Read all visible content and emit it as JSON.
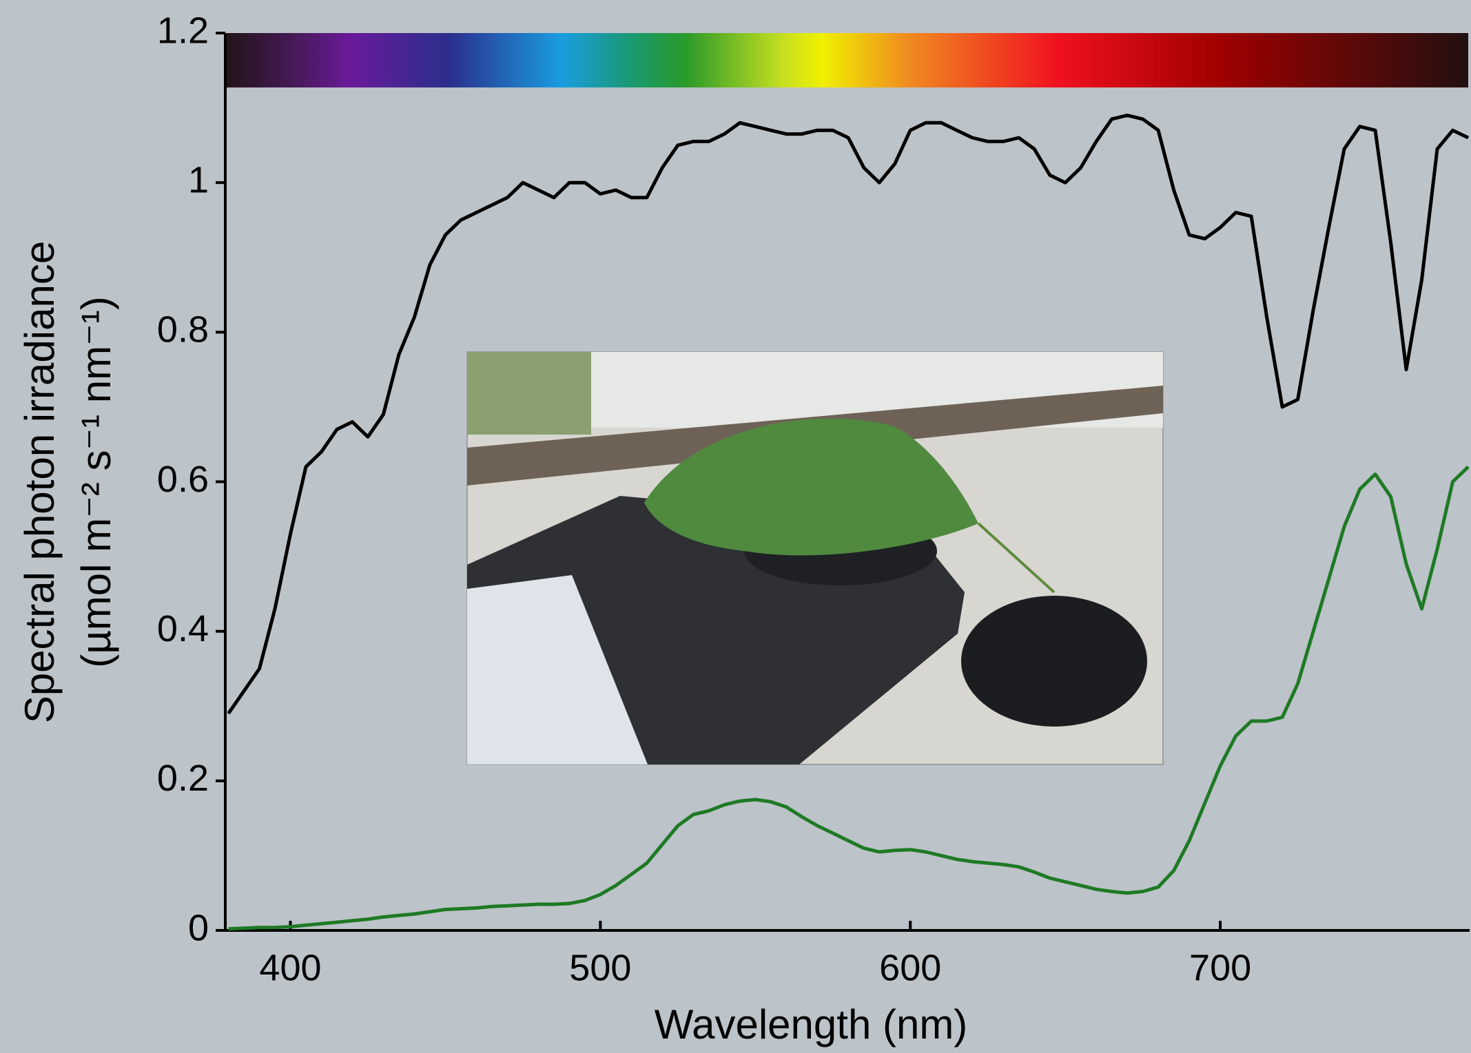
{
  "chart_data": {
    "type": "line",
    "x_label": "Wavelength (nm)",
    "y_label": [
      "Spectral photon irradiance",
      "(µmol m⁻² s⁻¹ nm⁻¹)"
    ],
    "x": [
      380,
      385,
      390,
      395,
      400,
      405,
      410,
      415,
      420,
      425,
      430,
      435,
      440,
      445,
      450,
      455,
      460,
      465,
      470,
      475,
      480,
      485,
      490,
      495,
      500,
      505,
      510,
      515,
      520,
      525,
      530,
      535,
      540,
      545,
      550,
      555,
      560,
      565,
      570,
      575,
      580,
      585,
      590,
      595,
      600,
      605,
      610,
      615,
      620,
      625,
      630,
      635,
      640,
      645,
      650,
      655,
      660,
      665,
      670,
      675,
      680,
      685,
      690,
      695,
      700,
      705,
      710,
      715,
      720,
      725,
      730,
      735,
      740,
      745,
      750,
      755,
      760,
      765,
      770,
      775,
      780
    ],
    "series": [
      {
        "color": "#000000",
        "values": [
          0.29,
          0.32,
          0.35,
          0.43,
          0.53,
          0.62,
          0.64,
          0.67,
          0.68,
          0.66,
          0.69,
          0.77,
          0.82,
          0.89,
          0.93,
          0.95,
          0.96,
          0.97,
          0.98,
          1.0,
          0.99,
          0.98,
          1.0,
          1.0,
          0.985,
          0.99,
          0.98,
          0.98,
          1.02,
          1.05,
          1.055,
          1.055,
          1.065,
          1.08,
          1.075,
          1.07,
          1.065,
          1.065,
          1.07,
          1.07,
          1.06,
          1.02,
          1.0,
          1.025,
          1.07,
          1.08,
          1.08,
          1.07,
          1.06,
          1.055,
          1.055,
          1.06,
          1.045,
          1.01,
          1.0,
          1.02,
          1.055,
          1.085,
          1.09,
          1.085,
          1.07,
          0.99,
          0.93,
          0.925,
          0.94,
          0.96,
          0.955,
          0.82,
          0.7,
          0.71,
          0.83,
          0.94,
          1.045,
          1.075,
          1.07,
          0.92,
          0.75,
          0.87,
          1.045,
          1.07,
          1.06
        ]
      },
      {
        "color": "#1e7a24",
        "values": [
          0.002,
          0.003,
          0.004,
          0.004,
          0.005,
          0.007,
          0.009,
          0.011,
          0.013,
          0.015,
          0.018,
          0.02,
          0.022,
          0.025,
          0.028,
          0.029,
          0.03,
          0.032,
          0.033,
          0.034,
          0.035,
          0.035,
          0.036,
          0.04,
          0.048,
          0.06,
          0.075,
          0.09,
          0.115,
          0.14,
          0.155,
          0.16,
          0.168,
          0.173,
          0.175,
          0.172,
          0.165,
          0.152,
          0.14,
          0.13,
          0.12,
          0.11,
          0.105,
          0.107,
          0.108,
          0.105,
          0.1,
          0.095,
          0.092,
          0.09,
          0.088,
          0.085,
          0.078,
          0.07,
          0.065,
          0.06,
          0.055,
          0.052,
          0.05,
          0.052,
          0.058,
          0.08,
          0.12,
          0.17,
          0.22,
          0.26,
          0.28,
          0.28,
          0.285,
          0.33,
          0.4,
          0.47,
          0.54,
          0.59,
          0.61,
          0.58,
          0.49,
          0.43,
          0.51,
          0.6,
          0.62
        ]
      }
    ],
    "xlim": [
      379,
      780
    ],
    "ylim": [
      0,
      1.2
    ],
    "xticks": [
      400,
      500,
      600,
      700
    ],
    "yticks": [
      0,
      0.2,
      0.4,
      0.6,
      0.8,
      1,
      1.2
    ]
  }
}
